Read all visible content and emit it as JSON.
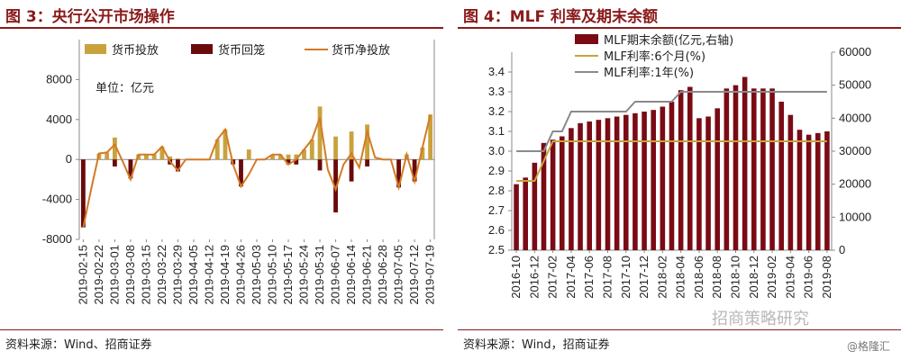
{
  "left": {
    "title": "图 3：央行公开市场操作",
    "source": "资料来源：Wind、招商证券",
    "chart_data": {
      "type": "bar",
      "title": "图 3：央行公开市场操作",
      "unit_label": "单位：亿元",
      "ylim": [
        -8000,
        12000
      ],
      "yticks": [
        8000,
        4000,
        0,
        -4000,
        -8000
      ],
      "x": [
        "2019-02-15",
        "2019-02-19",
        "2019-02-22",
        "2019-02-26",
        "2019-03-01",
        "2019-03-05",
        "2019-03-08",
        "2019-03-12",
        "2019-03-15",
        "2019-03-19",
        "2019-03-22",
        "2019-03-26",
        "2019-03-29",
        "2019-04-02",
        "2019-04-05",
        "2019-04-09",
        "2019-04-12",
        "2019-04-16",
        "2019-04-19",
        "2019-04-23",
        "2019-04-26",
        "2019-04-30",
        "2019-05-03",
        "2019-05-07",
        "2019-05-10",
        "2019-05-14",
        "2019-05-17",
        "2019-05-21",
        "2019-05-24",
        "2019-05-28",
        "2019-05-31",
        "2019-06-04",
        "2019-06-07",
        "2019-06-11",
        "2019-06-14",
        "2019-06-18",
        "2019-06-21",
        "2019-06-25",
        "2019-06-28",
        "2019-07-02",
        "2019-07-05",
        "2019-07-09",
        "2019-07-12",
        "2019-07-16",
        "2019-07-19"
      ],
      "xtick_labels": [
        "2019-02-15",
        "2019-02-22",
        "2019-03-01",
        "2019-03-08",
        "2019-03-15",
        "2019-03-22",
        "2019-03-29",
        "2019-04-05",
        "2019-04-12",
        "2019-04-19",
        "2019-04-26",
        "2019-05-03",
        "2019-05-10",
        "2019-05-17",
        "2019-05-24",
        "2019-05-31",
        "2019-06-07",
        "2019-06-14",
        "2019-06-21",
        "2019-06-28",
        "2019-07-05",
        "2019-07-12",
        "2019-07-19"
      ],
      "series": [
        {
          "name": "货币投放",
          "kind": "bar",
          "color": "#c9a23e",
          "values": [
            0,
            0,
            600,
            700,
            2200,
            0,
            -700,
            500,
            500,
            500,
            1300,
            300,
            100,
            0,
            0,
            0,
            0,
            2000,
            3000,
            0,
            0,
            1000,
            0,
            0,
            500,
            500,
            500,
            500,
            1000,
            2000,
            5300,
            0,
            2300,
            0,
            2800,
            0,
            3500,
            0,
            0,
            0,
            0,
            500,
            0,
            1200,
            4500
          ]
        },
        {
          "name": "货币回笼",
          "kind": "bar",
          "color": "#6a0a0a",
          "values": [
            -6800,
            0,
            0,
            0,
            -700,
            0,
            -1900,
            0,
            0,
            0,
            0,
            -500,
            -1200,
            0,
            0,
            0,
            0,
            0,
            0,
            -500,
            -2700,
            0,
            0,
            0,
            0,
            0,
            -500,
            -500,
            0,
            0,
            -1100,
            0,
            -5300,
            0,
            -2200,
            0,
            -700,
            0,
            0,
            0,
            -2800,
            0,
            -2200,
            0,
            0
          ]
        },
        {
          "name": "货币净投放",
          "kind": "line",
          "color": "#d47a24",
          "values": [
            -6800,
            -3000,
            600,
            700,
            1500,
            -200,
            -2000,
            500,
            500,
            500,
            1300,
            -200,
            -1100,
            0,
            0,
            0,
            0,
            2000,
            3000,
            -500,
            -2700,
            -1500,
            0,
            0,
            500,
            500,
            -500,
            0,
            1000,
            2000,
            4200,
            -1000,
            -3000,
            -500,
            600,
            -800,
            2800,
            200,
            0,
            0,
            -2800,
            500,
            -2200,
            1200,
            4500
          ]
        }
      ]
    }
  },
  "right": {
    "title": "图 4：MLF 利率及期末余额",
    "source": "资料来源：Wind，招商证券",
    "chart_data": {
      "type": "bar",
      "title": "图 4：MLF 利率及期末余额",
      "x": [
        "2016-10",
        "2016-11",
        "2016-12",
        "2017-01",
        "2017-02",
        "2017-03",
        "2017-04",
        "2017-05",
        "2017-06",
        "2017-07",
        "2017-08",
        "2017-09",
        "2017-10",
        "2017-11",
        "2017-12",
        "2018-01",
        "2018-02",
        "2018-03",
        "2018-04",
        "2018-05",
        "2018-06",
        "2018-07",
        "2018-08",
        "2018-09",
        "2018-10",
        "2018-11",
        "2018-12",
        "2019-01",
        "2019-02",
        "2019-03",
        "2019-04",
        "2019-05",
        "2019-06",
        "2019-07",
        "2019-08"
      ],
      "xtick_labels": [
        "2016-10",
        "2016-12",
        "2017-02",
        "2017-04",
        "2017-06",
        "2017-08",
        "2017-10",
        "2017-12",
        "2018-02",
        "2018-04",
        "2018-06",
        "2018-08",
        "2018-10",
        "2018-12",
        "2019-02",
        "2019-04",
        "2019-06",
        "2019-08"
      ],
      "ylim_left": [
        2.5,
        3.5
      ],
      "yticks_left": [
        2.5,
        2.6,
        2.7,
        2.8,
        2.9,
        3.0,
        3.1,
        3.2,
        3.3,
        3.4
      ],
      "ylim_right": [
        0,
        60000
      ],
      "yticks_right": [
        0,
        10000,
        20000,
        30000,
        40000,
        50000,
        60000
      ],
      "series": [
        {
          "name": "MLF期末余额(亿元,右轴)",
          "kind": "bar",
          "axis": "right",
          "color": "#7a0a14",
          "values": [
            20000,
            22000,
            26500,
            32500,
            33500,
            34500,
            37000,
            38500,
            39000,
            39500,
            40000,
            40500,
            41000,
            41500,
            42000,
            42500,
            43500,
            45000,
            48500,
            49500,
            40000,
            40500,
            43000,
            49000,
            50000,
            52500,
            49000,
            49000,
            49000,
            45000,
            41000,
            36500,
            35000,
            35500,
            36000
          ]
        },
        {
          "name": "MLF利率:6个月(%)",
          "kind": "line",
          "axis": "left",
          "color": "#c9a23e",
          "values": [
            2.85,
            2.85,
            2.85,
            2.95,
            3.05,
            3.05,
            3.05,
            3.05,
            3.05,
            3.05,
            3.05,
            3.05,
            3.05,
            3.05,
            3.05,
            3.05,
            3.05,
            3.05,
            3.05,
            3.05,
            3.05,
            3.05,
            3.05,
            3.05,
            3.05,
            3.05,
            3.05,
            3.05,
            3.05,
            3.05,
            3.05,
            3.05,
            3.05,
            3.05,
            3.05
          ]
        },
        {
          "name": "MLF利率:1年(%)",
          "kind": "line",
          "axis": "left",
          "color": "#8a8a8a",
          "values": [
            3.0,
            3.0,
            3.0,
            3.0,
            3.1,
            3.1,
            3.2,
            3.2,
            3.2,
            3.2,
            3.2,
            3.2,
            3.2,
            3.25,
            3.25,
            3.25,
            3.25,
            3.25,
            3.3,
            3.3,
            3.3,
            3.3,
            3.3,
            3.3,
            3.3,
            3.3,
            3.3,
            3.3,
            3.3,
            3.3,
            3.3,
            3.3,
            3.3,
            3.3,
            3.3
          ]
        }
      ]
    }
  },
  "watermark": "招商策略研究",
  "watermark2": "@格隆汇"
}
